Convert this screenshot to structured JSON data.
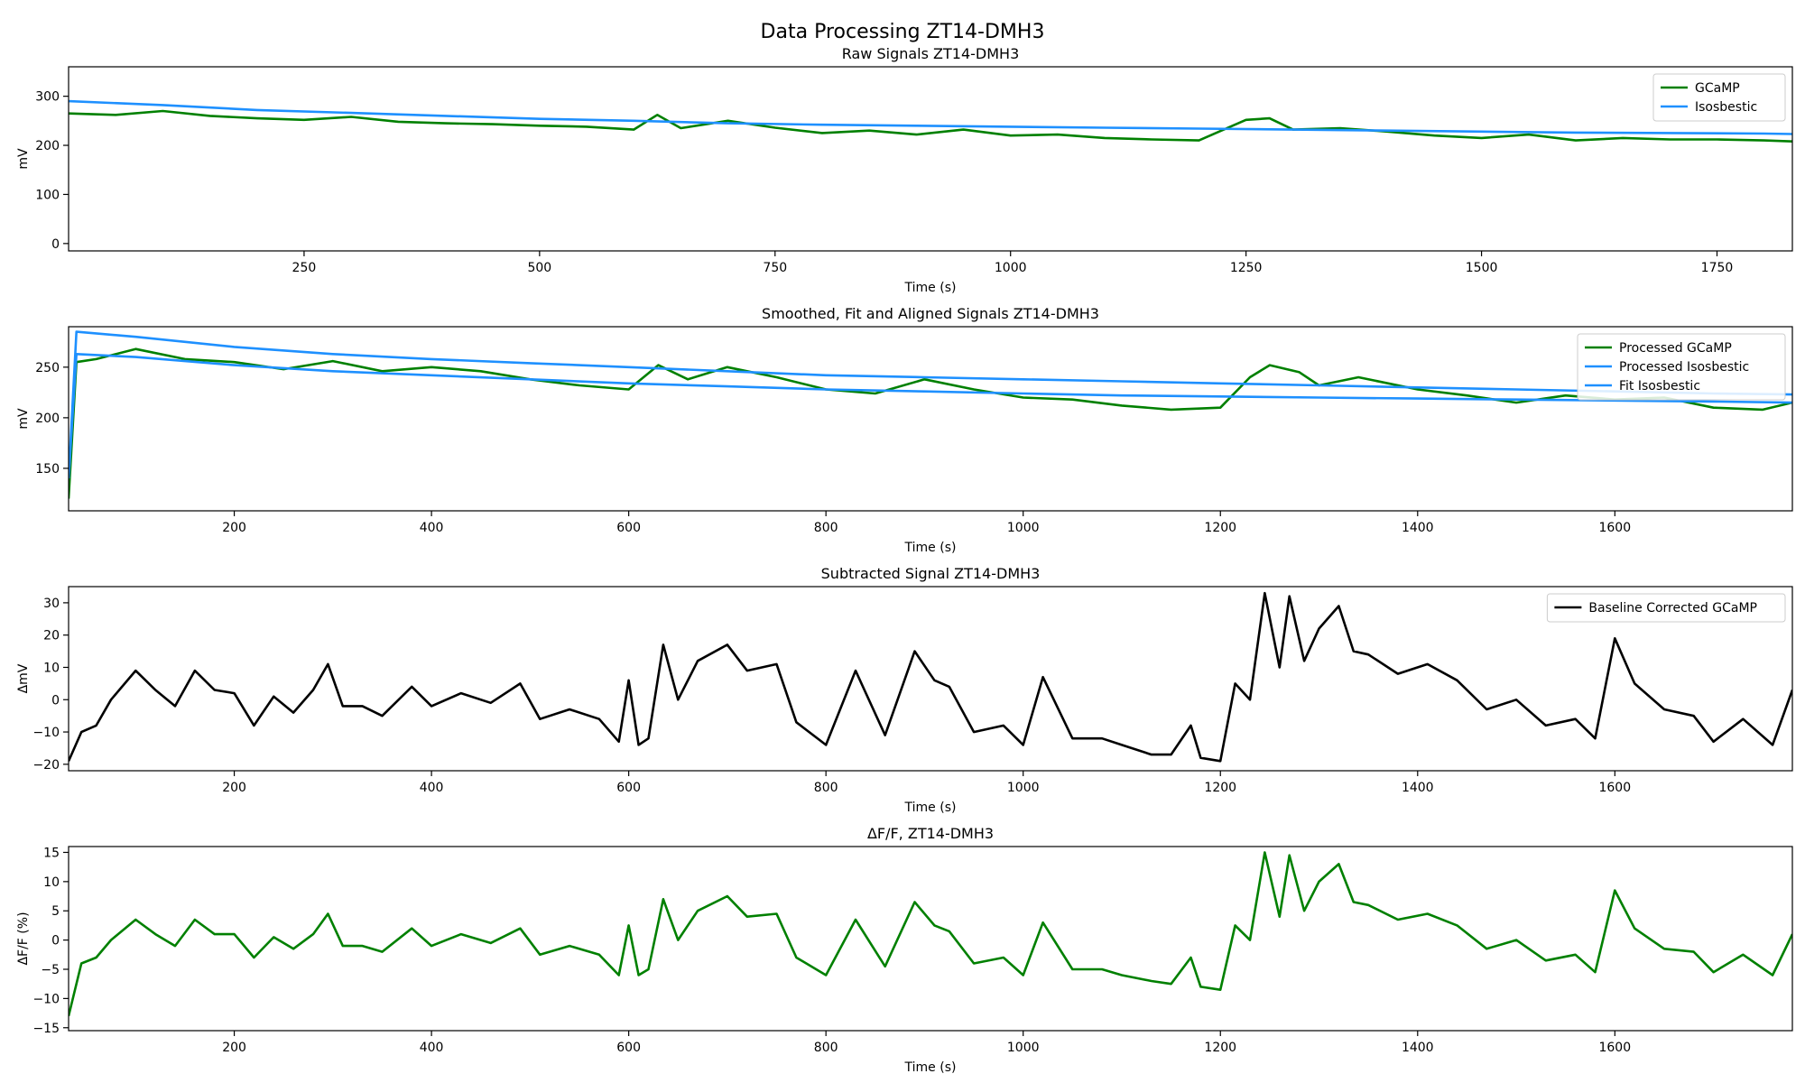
{
  "figure_title": "Data Processing ZT14-DMH3",
  "chart_data": [
    {
      "type": "line",
      "title": "Raw Signals ZT14-DMH3",
      "xlabel": "Time (s)",
      "ylabel": "mV",
      "xlim": [
        0,
        1830
      ],
      "ylim": [
        -15,
        360
      ],
      "xticks": [
        250,
        500,
        750,
        1000,
        1250,
        1500,
        1750
      ],
      "yticks": [
        0,
        100,
        200,
        300
      ],
      "legend": "top-right",
      "series": [
        {
          "name": "GCaMP",
          "color": "#008000",
          "x": [
            0,
            50,
            100,
            150,
            200,
            250,
            300,
            350,
            400,
            450,
            500,
            550,
            600,
            625,
            650,
            700,
            750,
            800,
            850,
            900,
            950,
            1000,
            1050,
            1100,
            1150,
            1200,
            1250,
            1275,
            1300,
            1350,
            1400,
            1450,
            1500,
            1550,
            1600,
            1650,
            1700,
            1750,
            1800,
            1830
          ],
          "y": [
            265,
            262,
            270,
            260,
            255,
            252,
            258,
            248,
            245,
            243,
            240,
            238,
            232,
            262,
            235,
            250,
            236,
            225,
            230,
            222,
            232,
            220,
            222,
            215,
            212,
            210,
            252,
            255,
            232,
            235,
            228,
            220,
            215,
            222,
            210,
            215,
            212,
            212,
            210,
            208
          ]
        },
        {
          "name": "Isosbestic",
          "color": "#1e90ff",
          "x": [
            0,
            100,
            200,
            300,
            400,
            500,
            600,
            700,
            800,
            900,
            1000,
            1100,
            1200,
            1300,
            1400,
            1500,
            1600,
            1700,
            1800,
            1830
          ],
          "y": [
            290,
            282,
            272,
            266,
            260,
            254,
            250,
            245,
            242,
            240,
            238,
            236,
            234,
            232,
            230,
            228,
            226,
            225,
            224,
            223
          ]
        }
      ]
    },
    {
      "type": "line",
      "title": "Smoothed, Fit and Aligned Signals ZT14-DMH3",
      "xlabel": "Time (s)",
      "ylabel": "mV",
      "xlim": [
        32,
        1780
      ],
      "ylim": [
        108,
        290
      ],
      "xticks": [
        200,
        400,
        600,
        800,
        1000,
        1200,
        1400,
        1600
      ],
      "yticks": [
        150,
        200,
        250
      ],
      "legend": "top-right",
      "series": [
        {
          "name": "Processed GCaMP",
          "color": "#008000",
          "x": [
            32,
            40,
            60,
            100,
            150,
            200,
            250,
            300,
            350,
            400,
            450,
            500,
            550,
            600,
            630,
            660,
            700,
            750,
            800,
            850,
            900,
            950,
            1000,
            1050,
            1100,
            1150,
            1200,
            1230,
            1250,
            1280,
            1300,
            1340,
            1400,
            1450,
            1500,
            1550,
            1600,
            1650,
            1700,
            1750,
            1780
          ],
          "y": [
            120,
            255,
            258,
            268,
            258,
            255,
            248,
            256,
            246,
            250,
            246,
            238,
            232,
            228,
            252,
            238,
            250,
            240,
            228,
            224,
            238,
            228,
            220,
            218,
            212,
            208,
            210,
            240,
            252,
            245,
            232,
            240,
            228,
            222,
            215,
            222,
            218,
            220,
            210,
            208,
            215
          ]
        },
        {
          "name": "Processed Isosbestic",
          "color": "#1e90ff",
          "x": [
            32,
            40,
            100,
            200,
            300,
            400,
            500,
            600,
            700,
            800,
            900,
            1000,
            1100,
            1200,
            1300,
            1400,
            1500,
            1600,
            1700,
            1780
          ],
          "y": [
            140,
            285,
            280,
            270,
            263,
            258,
            254,
            250,
            246,
            242,
            240,
            238,
            236,
            234,
            232,
            230,
            228,
            226,
            224,
            223
          ]
        },
        {
          "name": "Fit Isosbestic",
          "color": "#1e90ff",
          "x": [
            32,
            40,
            100,
            200,
            300,
            400,
            500,
            600,
            700,
            800,
            900,
            1000,
            1100,
            1200,
            1300,
            1400,
            1500,
            1600,
            1700,
            1780
          ],
          "y": [
            140,
            263,
            260,
            252,
            246,
            242,
            238,
            234,
            231,
            228,
            226,
            224,
            222,
            221,
            220,
            219,
            218,
            217,
            216,
            215
          ]
        }
      ]
    },
    {
      "type": "line",
      "title": "Subtracted Signal ZT14-DMH3",
      "xlabel": "Time (s)",
      "ylabel": "ΔmV",
      "xlim": [
        32,
        1780
      ],
      "ylim": [
        -22,
        35
      ],
      "xticks": [
        200,
        400,
        600,
        800,
        1000,
        1200,
        1400,
        1600
      ],
      "yticks": [
        -20,
        -10,
        0,
        10,
        20,
        30
      ],
      "legend": "top-right",
      "series": [
        {
          "name": "Baseline Corrected GCaMP",
          "color": "#000000",
          "x": [
            32,
            45,
            60,
            75,
            100,
            120,
            140,
            160,
            180,
            200,
            220,
            240,
            260,
            280,
            295,
            310,
            330,
            350,
            380,
            400,
            430,
            460,
            490,
            510,
            540,
            570,
            590,
            600,
            610,
            620,
            635,
            650,
            670,
            700,
            720,
            750,
            770,
            800,
            830,
            860,
            890,
            910,
            925,
            950,
            980,
            1000,
            1020,
            1050,
            1080,
            1100,
            1130,
            1150,
            1170,
            1180,
            1200,
            1215,
            1230,
            1245,
            1260,
            1270,
            1285,
            1300,
            1320,
            1335,
            1350,
            1380,
            1410,
            1440,
            1470,
            1500,
            1530,
            1560,
            1580,
            1600,
            1620,
            1650,
            1680,
            1700,
            1730,
            1760,
            1780
          ],
          "y": [
            -19,
            -10,
            -8,
            0,
            9,
            3,
            -2,
            9,
            3,
            2,
            -8,
            1,
            -4,
            3,
            11,
            -2,
            -2,
            -5,
            4,
            -2,
            2,
            -1,
            5,
            -6,
            -3,
            -6,
            -13,
            6,
            -14,
            -12,
            17,
            0,
            12,
            17,
            9,
            11,
            -7,
            -14,
            9,
            -11,
            15,
            6,
            4,
            -10,
            -8,
            -14,
            7,
            -12,
            -12,
            -14,
            -17,
            -17,
            -8,
            -18,
            -19,
            5,
            0,
            33,
            10,
            32,
            12,
            22,
            29,
            15,
            14,
            8,
            11,
            6,
            -3,
            0,
            -8,
            -6,
            -12,
            19,
            5,
            -3,
            -5,
            -13,
            -6,
            -14,
            3
          ]
        }
      ]
    },
    {
      "type": "line",
      "title": "ΔF/F, ZT14-DMH3",
      "xlabel": "Time (s)",
      "ylabel": "ΔF/F (%)",
      "xlim": [
        32,
        1780
      ],
      "ylim": [
        -15.5,
        16
      ],
      "xticks": [
        200,
        400,
        600,
        800,
        1000,
        1200,
        1400,
        1600
      ],
      "yticks": [
        -15,
        -10,
        -5,
        0,
        5,
        10,
        15
      ],
      "legend": "none",
      "series": [
        {
          "name": "",
          "color": "#008000",
          "x": [
            32,
            45,
            60,
            75,
            100,
            120,
            140,
            160,
            180,
            200,
            220,
            240,
            260,
            280,
            295,
            310,
            330,
            350,
            380,
            400,
            430,
            460,
            490,
            510,
            540,
            570,
            590,
            600,
            610,
            620,
            635,
            650,
            670,
            700,
            720,
            750,
            770,
            800,
            830,
            860,
            890,
            910,
            925,
            950,
            980,
            1000,
            1020,
            1050,
            1080,
            1100,
            1130,
            1150,
            1170,
            1180,
            1200,
            1215,
            1230,
            1245,
            1260,
            1270,
            1285,
            1300,
            1320,
            1335,
            1350,
            1380,
            1410,
            1440,
            1470,
            1500,
            1530,
            1560,
            1580,
            1600,
            1620,
            1650,
            1680,
            1700,
            1730,
            1760,
            1780
          ],
          "y": [
            -13,
            -4,
            -3,
            0,
            3.5,
            1,
            -1,
            3.5,
            1,
            1,
            -3,
            0.5,
            -1.5,
            1,
            4.5,
            -1,
            -1,
            -2,
            2,
            -1,
            1,
            -0.5,
            2,
            -2.5,
            -1,
            -2.5,
            -6,
            2.5,
            -6,
            -5,
            7,
            0,
            5,
            7.5,
            4,
            4.5,
            -3,
            -6,
            3.5,
            -4.5,
            6.5,
            2.5,
            1.5,
            -4,
            -3,
            -6,
            3,
            -5,
            -5,
            -6,
            -7,
            -7.5,
            -3,
            -8,
            -8.5,
            2.5,
            0,
            15,
            4,
            14.5,
            5,
            10,
            13,
            6.5,
            6,
            3.5,
            4.5,
            2.5,
            -1.5,
            0,
            -3.5,
            -2.5,
            -5.5,
            8.5,
            2,
            -1.5,
            -2,
            -5.5,
            -2.5,
            -6,
            1
          ]
        }
      ]
    }
  ]
}
